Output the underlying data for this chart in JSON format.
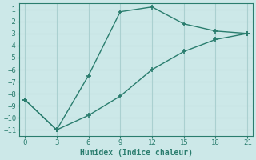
{
  "line1_x": [
    0,
    3,
    6,
    9,
    12,
    15,
    18,
    21
  ],
  "line1_y": [
    -8.5,
    -11.0,
    -6.5,
    -1.2,
    -0.8,
    -2.2,
    -2.8,
    -3.0
  ],
  "line2_x": [
    0,
    3,
    6,
    9,
    12,
    15,
    18,
    21
  ],
  "line2_y": [
    -8.5,
    -11.0,
    -9.8,
    -8.2,
    -6.0,
    -4.5,
    -3.5,
    -3.0
  ],
  "line_color": "#2a7d6e",
  "bg_color": "#cce8e8",
  "grid_color": "#aad0d0",
  "xlabel": "Humidex (Indice chaleur)",
  "xlim": [
    -0.5,
    21.5
  ],
  "ylim": [
    -11.5,
    -0.5
  ],
  "xticks": [
    0,
    3,
    6,
    9,
    12,
    15,
    18,
    21
  ],
  "yticks": [
    -11,
    -10,
    -9,
    -8,
    -7,
    -6,
    -5,
    -4,
    -3,
    -2,
    -1
  ],
  "marker": "+",
  "markersize": 5,
  "linewidth": 1.0,
  "tick_fontsize": 6.5,
  "xlabel_fontsize": 7
}
